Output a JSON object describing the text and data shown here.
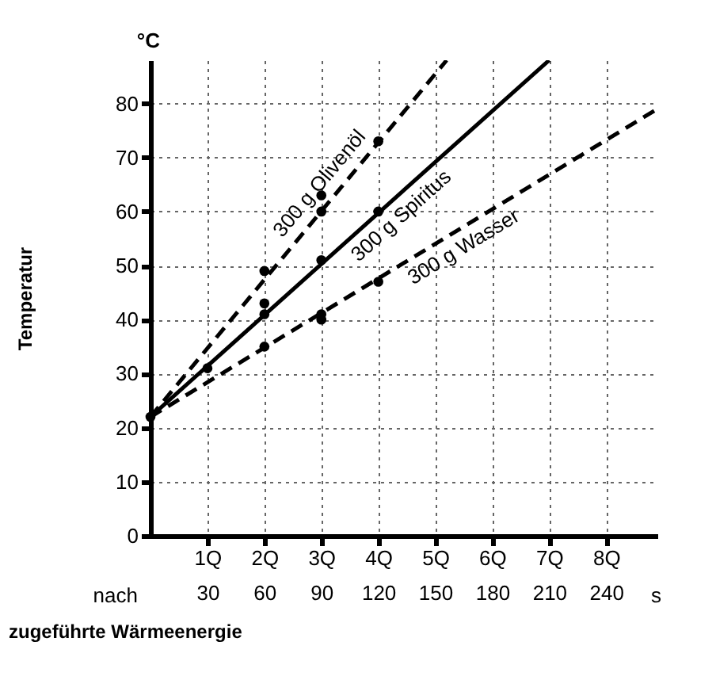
{
  "chart_data": {
    "type": "line",
    "xlabel": "zugeführte Wärmeenergie",
    "ylabel": "Temperatur",
    "annotations": [
      "°C",
      "nach",
      "s"
    ],
    "xlim": [
      0,
      267
    ],
    "ylim": [
      0,
      88
    ],
    "xticks": [
      30,
      60,
      90,
      120,
      150,
      180,
      210,
      240
    ],
    "x2lim": [
      0,
      8.9
    ],
    "x2ticks": [
      {
        "value": 1,
        "label": "1Q"
      },
      {
        "value": 2,
        "label": "2Q"
      },
      {
        "value": 3,
        "label": "3Q"
      },
      {
        "value": 4,
        "label": "4Q"
      },
      {
        "value": 5,
        "label": "5Q"
      },
      {
        "value": 6,
        "label": "6Q"
      },
      {
        "value": 7,
        "label": "7Q"
      },
      {
        "value": 8,
        "label": "8Q"
      }
    ],
    "yticks": [
      0,
      10,
      20,
      30,
      40,
      50,
      60,
      70,
      80
    ],
    "grid": true,
    "series": [
      {
        "name": "300 g Olivenöl",
        "color": "#000000",
        "x": [
          0,
          156
        ],
        "values": [
          22,
          88
        ],
        "line_style": "dashed",
        "marker": "none"
      },
      {
        "name": "300 g Spiritus",
        "color": "#000000",
        "x": [
          0,
          210
        ],
        "values": [
          22,
          88
        ],
        "line_style": "solid",
        "marker": "none"
      },
      {
        "name": "300 g Wasser",
        "color": "#000000",
        "x": [
          0,
          267
        ],
        "values": [
          22,
          79
        ],
        "line_style": "dashed",
        "marker": "none"
      },
      {
        "type": "scatter",
        "color": "#000000",
        "marker": "circle",
        "x": [
          0,
          60,
          60,
          90,
          90,
          120
        ],
        "values": [
          22,
          49,
          43,
          63,
          60,
          73
        ]
      },
      {
        "type": "scatter",
        "color": "#000000",
        "marker": "circle",
        "x": [
          30,
          60,
          90,
          120
        ],
        "values": [
          31,
          41,
          51,
          60
        ]
      },
      {
        "type": "scatter",
        "color": "#000000",
        "marker": "circle",
        "x": [
          60,
          90,
          90,
          120
        ],
        "values": [
          35,
          41,
          40,
          47
        ]
      }
    ]
  }
}
